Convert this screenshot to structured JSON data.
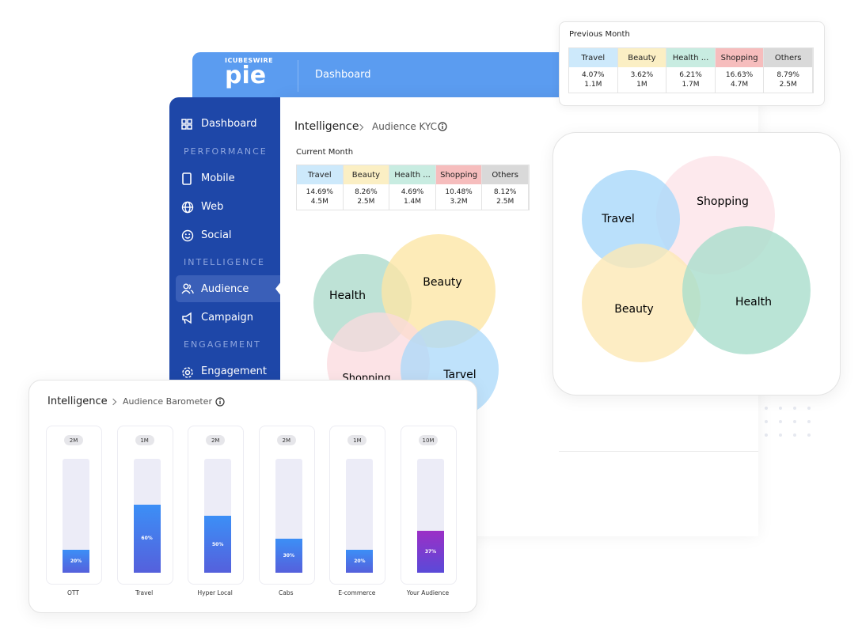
{
  "header": {
    "brand": "ICUBESWIRE",
    "logo": "pie",
    "title": "Dashboard"
  },
  "sidebar": {
    "items": [
      "Dashboard",
      "PERFORMANCE",
      "Mobile",
      "Web",
      "Social",
      "INTELLIGENCE",
      "Audience",
      "Campaign",
      "ENGAGEMENT",
      "Engagement"
    ]
  },
  "kyc": {
    "breadcrumb": [
      "Intelligence",
      "Audience KYC"
    ],
    "table_title": "Current Month",
    "table": {
      "header": [
        "Travel",
        "Beauty",
        "Health ...",
        "Shopping",
        "Others"
      ],
      "rows": [
        [
          "14.69%",
          "8.26%",
          "4.69%",
          "10.48%",
          "8.12%"
        ],
        [
          "4.5M",
          "2.5M",
          "1.4M",
          "3.2M",
          "2.5M"
        ]
      ]
    },
    "venn": [
      "Health",
      "Beauty",
      "Shopping",
      "Tarvel"
    ]
  },
  "previous": {
    "title": "Previous Month",
    "table": {
      "header": [
        "Travel",
        "Beauty",
        "Health ...",
        "Shopping",
        "Others"
      ],
      "rows": [
        [
          "4.07%",
          "3.62%",
          "6.21%",
          "16.63%",
          "8.79%"
        ],
        [
          "1.1M",
          "1M",
          "1.7M",
          "4.7M",
          "2.5M"
        ]
      ]
    }
  },
  "venn_card": {
    "labels": [
      "Travel",
      "Shopping",
      "Beauty",
      "Health"
    ]
  },
  "barometer": {
    "breadcrumb": [
      "Intelligence",
      "Audience Barometer"
    ],
    "categories": [
      "OTT",
      "Travel",
      "Hyper Local",
      "Cabs",
      "E-commerce",
      "Your Audience"
    ],
    "badges": [
      "2M",
      "1M",
      "2M",
      "2M",
      "1M",
      "10M"
    ],
    "values": [
      20,
      60,
      50,
      30,
      20,
      37
    ],
    "value_labels": [
      "20%",
      "60%",
      "50%",
      "30%",
      "20%",
      "37%"
    ],
    "ylim": [
      0,
      100
    ]
  }
}
